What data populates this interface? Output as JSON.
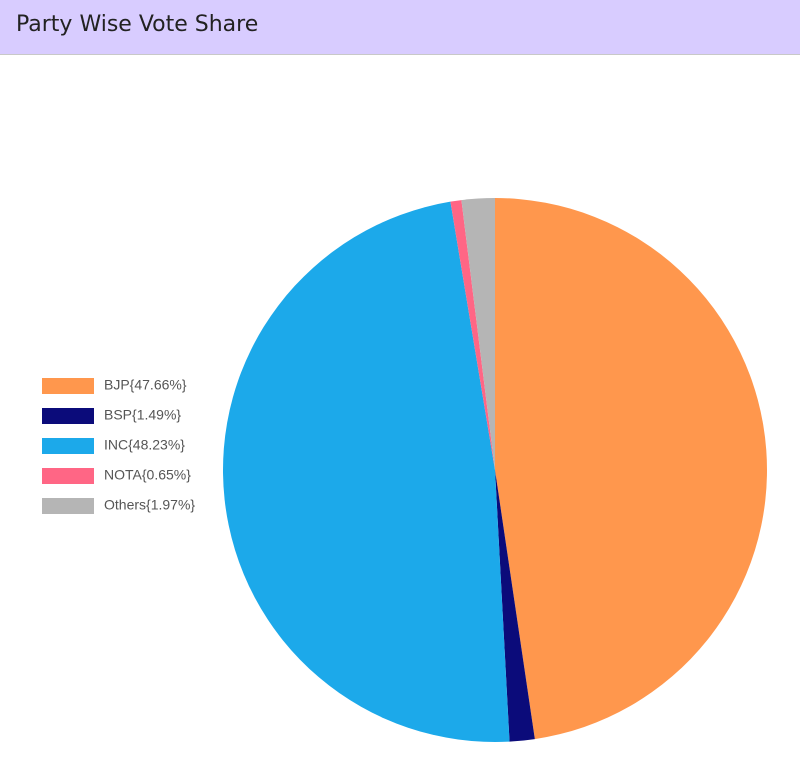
{
  "chart_data": {
    "type": "pie",
    "title": "Party Wise Vote Share",
    "categories": [
      "BJP{47.66%}",
      "BSP{1.49%}",
      "INC{48.23%}",
      "NOTA{0.65%}",
      "Others{1.97%}"
    ],
    "values": [
      47.66,
      1.49,
      48.23,
      0.65,
      1.97
    ],
    "colors": [
      "#ff974d",
      "#0b0b7a",
      "#1ca9ea",
      "#ff6685",
      "#b5b5b5"
    ],
    "legend": "left"
  }
}
